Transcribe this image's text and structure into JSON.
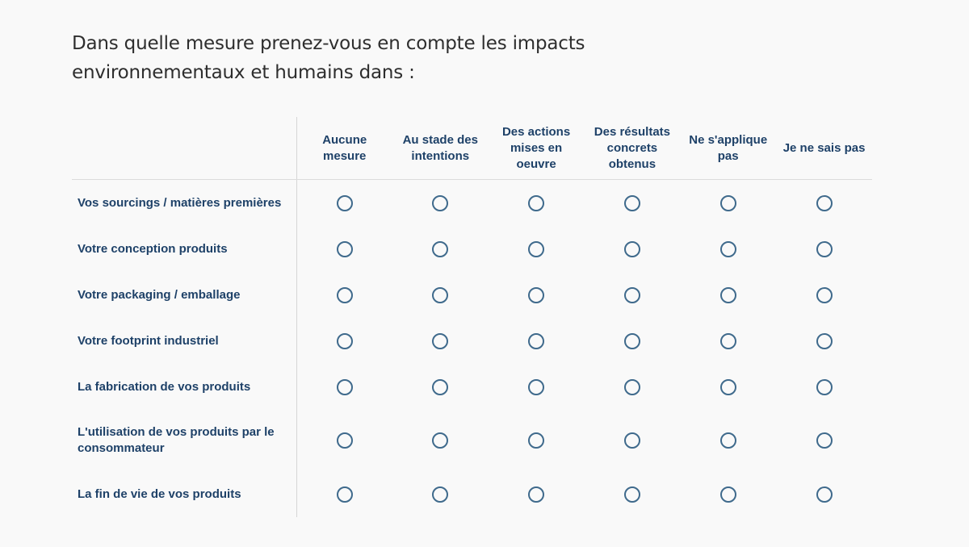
{
  "question": "Dans quelle mesure prenez-vous en compte les impacts environnementaux et humains dans :",
  "columns": [
    "Aucune mesure",
    "Au stade des intentions",
    "Des actions mises en oeuvre",
    "Des résultats concrets obtenus",
    "Ne s'applique pas",
    "Je ne sais pas"
  ],
  "rows": [
    "Vos sourcings / matières premières",
    "Votre conception produits",
    "Votre packaging / emballage",
    "Votre footprint industriel",
    "La fabrication de vos produits",
    "L'utilisation de vos produits par le consommateur",
    "La fin de vie de vos produits"
  ],
  "colors": {
    "label_text": "#1e4168",
    "question_text": "#2e2e2e",
    "radio_border": "#3f6a8c",
    "background": "#f9f9f9"
  }
}
